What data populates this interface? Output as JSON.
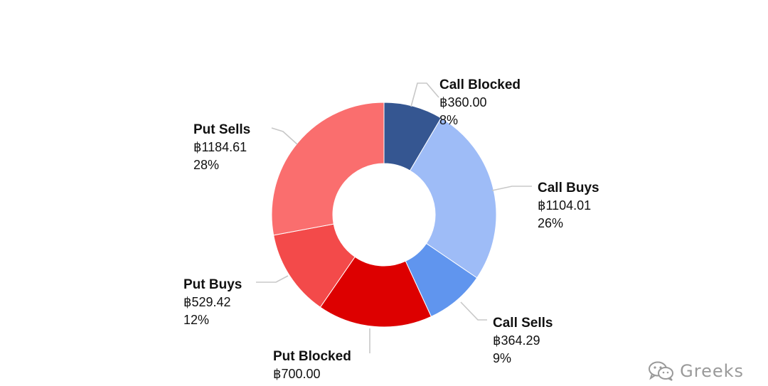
{
  "chart_data": {
    "type": "pie",
    "variant": "donut",
    "title": "",
    "series": [
      {
        "name": "Call Blocked",
        "value_label": "฿360.00",
        "value": 360.0,
        "percent_label": "8%",
        "color": "#355691"
      },
      {
        "name": "Call Buys",
        "value_label": "฿1104.01",
        "value": 1104.01,
        "percent_label": "26%",
        "color": "#9ebcf7"
      },
      {
        "name": "Call Sells",
        "value_label": "฿364.29",
        "value": 364.29,
        "percent_label": "9%",
        "color": "#6095ee"
      },
      {
        "name": "Put Blocked",
        "value_label": "฿700.00",
        "value": 700.0,
        "percent_label": "",
        "color": "#dd0000"
      },
      {
        "name": "Put Buys",
        "value_label": "฿529.42",
        "value": 529.42,
        "percent_label": "12%",
        "color": "#f34a4a"
      },
      {
        "name": "Put Sells",
        "value_label": "฿1184.61",
        "value": 1184.61,
        "percent_label": "28%",
        "color": "#fa6e6e"
      }
    ],
    "legend": "none",
    "grid": false
  },
  "watermark": {
    "text": "Greeks",
    "icon": "wechat-icon"
  },
  "header": {
    "logo_icon": "brand-logo-icon",
    "accent_color": "#f5a623"
  }
}
